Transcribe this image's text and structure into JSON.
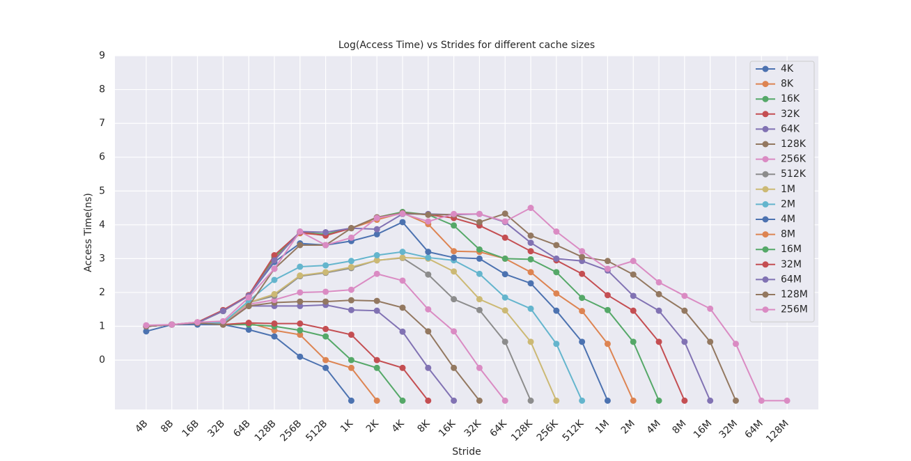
{
  "chart_data": {
    "type": "line",
    "title": "Log(Access Time) vs Strides for different cache sizes",
    "x_label": "Stride",
    "y_label": "Access Time(ns)",
    "categories": [
      "4B",
      "8B",
      "16B",
      "32B",
      "64B",
      "128B",
      "256B",
      "512B",
      "1K",
      "2K",
      "4K",
      "8K",
      "16K",
      "32K",
      "64K",
      "128K",
      "256K",
      "512K",
      "1M",
      "2M",
      "4M",
      "8M",
      "16M",
      "32M",
      "64M",
      "128M"
    ],
    "ylim": [
      -1.46,
      9
    ],
    "yticks": [
      0,
      1,
      2,
      3,
      4,
      5,
      6,
      7,
      8,
      9
    ],
    "grid": true,
    "legend": "upper right",
    "series": [
      {
        "name": "4K",
        "color": "#4c72b0",
        "values": [
          0.85,
          1.05,
          1.05,
          1.05,
          0.9,
          0.7,
          0.1,
          -0.23,
          -1.2,
          null,
          null,
          null,
          null,
          null,
          null,
          null,
          null,
          null,
          null,
          null,
          null,
          null,
          null,
          null,
          null,
          null
        ]
      },
      {
        "name": "8K",
        "color": "#dd8452",
        "values": [
          1.0,
          1.05,
          1.1,
          1.05,
          1.1,
          0.88,
          0.75,
          0.0,
          -0.23,
          -1.2,
          null,
          null,
          null,
          null,
          null,
          null,
          null,
          null,
          null,
          null,
          null,
          null,
          null,
          null,
          null,
          null
        ]
      },
      {
        "name": "16K",
        "color": "#55a868",
        "values": [
          1.0,
          1.05,
          1.1,
          1.05,
          1.05,
          1.0,
          0.88,
          0.7,
          0.0,
          -0.23,
          -1.2,
          null,
          null,
          null,
          null,
          null,
          null,
          null,
          null,
          null,
          null,
          null,
          null,
          null,
          null,
          null
        ]
      },
      {
        "name": "32K",
        "color": "#c44e52",
        "values": [
          1.0,
          1.05,
          1.1,
          1.05,
          1.1,
          1.08,
          1.08,
          0.92,
          0.75,
          0.0,
          -0.23,
          -1.2,
          null,
          null,
          null,
          null,
          null,
          null,
          null,
          null,
          null,
          null,
          null,
          null,
          null,
          null
        ]
      },
      {
        "name": "64K",
        "color": "#8172b3",
        "values": [
          1.0,
          1.05,
          1.1,
          1.05,
          1.6,
          1.6,
          1.6,
          1.63,
          1.48,
          1.46,
          0.84,
          -0.23,
          -1.2,
          null,
          null,
          null,
          null,
          null,
          null,
          null,
          null,
          null,
          null,
          null,
          null,
          null
        ]
      },
      {
        "name": "128K",
        "color": "#937860",
        "values": [
          1.0,
          1.05,
          1.1,
          1.05,
          1.6,
          1.7,
          1.73,
          1.73,
          1.77,
          1.75,
          1.55,
          0.85,
          -0.23,
          -1.2,
          null,
          null,
          null,
          null,
          null,
          null,
          null,
          null,
          null,
          null,
          null,
          null
        ]
      },
      {
        "name": "256K",
        "color": "#da8bc3",
        "values": [
          1.0,
          1.05,
          1.1,
          1.1,
          1.65,
          1.78,
          2.0,
          2.02,
          2.08,
          2.55,
          2.35,
          1.5,
          0.85,
          -0.23,
          -1.2,
          null,
          null,
          null,
          null,
          null,
          null,
          null,
          null,
          null,
          null,
          null
        ]
      },
      {
        "name": "512K",
        "color": "#8c8c8c",
        "values": [
          1.0,
          1.05,
          1.1,
          1.1,
          1.7,
          1.9,
          2.48,
          2.58,
          2.72,
          2.95,
          3.02,
          2.53,
          1.8,
          1.48,
          0.54,
          -1.2,
          null,
          null,
          null,
          null,
          null,
          null,
          null,
          null,
          null,
          null
        ]
      },
      {
        "name": "1M",
        "color": "#ccb974",
        "values": [
          1.0,
          1.05,
          1.1,
          1.1,
          1.7,
          1.95,
          2.5,
          2.6,
          2.75,
          2.95,
          3.03,
          3.0,
          2.62,
          1.8,
          1.47,
          0.54,
          -1.2,
          null,
          null,
          null,
          null,
          null,
          null,
          null,
          null,
          null
        ]
      },
      {
        "name": "2M",
        "color": "#64b5cd",
        "values": [
          1.0,
          1.05,
          1.1,
          1.1,
          1.75,
          2.37,
          2.76,
          2.8,
          2.93,
          3.1,
          3.2,
          3.03,
          2.95,
          2.55,
          1.85,
          1.52,
          0.48,
          -1.2,
          null,
          null,
          null,
          null,
          null,
          null,
          null,
          null
        ]
      },
      {
        "name": "4M",
        "color": "#4c72b0",
        "values": [
          1.0,
          1.05,
          1.1,
          1.45,
          1.9,
          2.9,
          3.45,
          3.4,
          3.52,
          3.72,
          4.08,
          3.2,
          3.03,
          3.0,
          2.54,
          2.27,
          1.46,
          0.54,
          -1.2,
          null,
          null,
          null,
          null,
          null,
          null,
          null
        ]
      },
      {
        "name": "8M",
        "color": "#dd8452",
        "values": [
          1.0,
          1.05,
          1.1,
          1.45,
          1.9,
          3.0,
          3.75,
          3.7,
          3.9,
          4.15,
          4.35,
          4.02,
          3.22,
          3.2,
          3.0,
          2.6,
          1.97,
          1.45,
          0.48,
          -1.2,
          null,
          null,
          null,
          null,
          null,
          null
        ]
      },
      {
        "name": "16M",
        "color": "#55a868",
        "values": [
          1.0,
          1.05,
          1.1,
          1.45,
          1.92,
          3.05,
          3.78,
          3.72,
          3.9,
          4.22,
          4.38,
          4.3,
          3.98,
          3.27,
          3.0,
          2.98,
          2.6,
          1.84,
          1.48,
          0.54,
          -1.2,
          null,
          null,
          null,
          null,
          null
        ]
      },
      {
        "name": "32M",
        "color": "#c44e52",
        "values": [
          1.0,
          1.05,
          1.12,
          1.48,
          1.92,
          3.1,
          3.78,
          3.68,
          3.9,
          4.22,
          4.35,
          4.3,
          4.2,
          3.98,
          3.62,
          3.22,
          2.95,
          2.55,
          1.92,
          1.46,
          0.54,
          -1.2,
          null,
          null,
          null,
          null
        ]
      },
      {
        "name": "64M",
        "color": "#8172b3",
        "values": [
          1.0,
          1.05,
          1.1,
          1.45,
          1.9,
          2.95,
          3.8,
          3.78,
          3.9,
          3.87,
          4.32,
          4.32,
          4.3,
          4.32,
          4.08,
          3.47,
          3.0,
          2.93,
          2.65,
          1.9,
          1.46,
          0.54,
          -1.2,
          null,
          null,
          null
        ]
      },
      {
        "name": "128M",
        "color": "#937860",
        "values": [
          1.0,
          1.05,
          1.1,
          1.05,
          1.6,
          2.7,
          3.4,
          3.4,
          3.9,
          4.22,
          4.35,
          4.3,
          4.3,
          4.08,
          4.33,
          3.68,
          3.4,
          3.05,
          2.93,
          2.53,
          1.95,
          1.46,
          0.54,
          -1.2,
          null,
          null
        ]
      },
      {
        "name": "256M",
        "color": "#da8bc3",
        "values": [
          1.03,
          1.05,
          1.12,
          1.15,
          1.85,
          2.7,
          3.8,
          3.4,
          3.62,
          4.2,
          4.33,
          4.1,
          4.32,
          4.32,
          4.1,
          4.5,
          3.8,
          3.22,
          2.7,
          2.93,
          2.3,
          1.9,
          1.52,
          0.48,
          -1.2,
          -1.2
        ]
      }
    ]
  }
}
